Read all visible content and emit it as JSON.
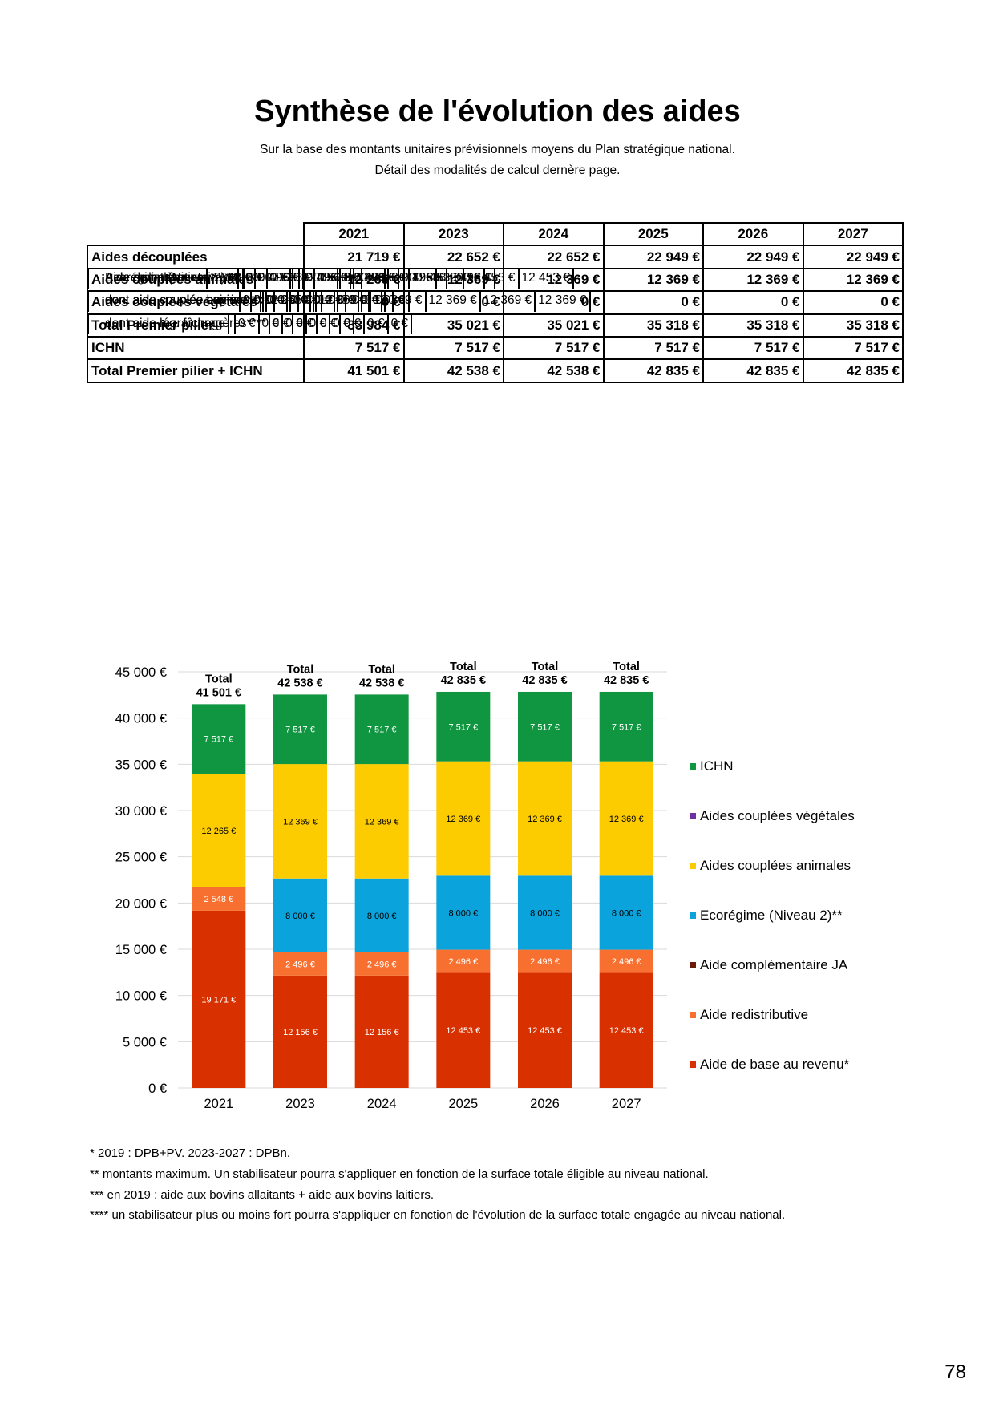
{
  "title": "Synthèse de l'évolution des aides",
  "subtitle_lines": [
    "Sur la base des montants unitaires prévisionnels moyens du Plan stratégique national.",
    "Détail des modalités de calcul dernère page."
  ],
  "table": {
    "years": [
      "2021",
      "2023",
      "2024",
      "2025",
      "2026",
      "2027"
    ],
    "rows": [
      {
        "label": "Aides découplées",
        "type": "group",
        "values": [
          "21 719 €",
          "22 652 €",
          "22 652 €",
          "22 949 €",
          "22 949 €",
          "22 949 €"
        ]
      },
      {
        "label": "Aide de base au revenu*",
        "type": "sub",
        "values": [
          "19 171 €",
          "12 156 €",
          "12 156 €",
          "12 453 €",
          "12 453 €",
          "12 453 €"
        ]
      },
      {
        "label": "Aide redistributive",
        "type": "sub",
        "values": [
          "2 548 €",
          "2 496 €",
          "2 496 €",
          "2 496 €",
          "2 496 €",
          "2 496 €"
        ]
      },
      {
        "label": "Aide complémentaire JA",
        "type": "sub",
        "values": [
          "0 €",
          "0 €",
          "0 €",
          "0 €",
          "0 €",
          "0 €"
        ]
      },
      {
        "label": "Ecorégime (Niveau 2)**",
        "type": "sub",
        "values": [
          "",
          "8 000 €",
          "8 000 €",
          "8 000 €",
          "8 000 €",
          "8 000 €"
        ]
      },
      {
        "label": "Aides couplées animales",
        "type": "group",
        "values": [
          "12 265 €",
          "12 369 €",
          "12 369 €",
          "12 369 €",
          "12 369 €",
          "12 369 €"
        ]
      },
      {
        "label": "dont aide couplée bovine***",
        "type": "sub",
        "values": [
          "12 265 €",
          "12 369 €",
          "12 369 €",
          "12 369 €",
          "12 369 €",
          "12 369 €"
        ]
      },
      {
        "label": "dont aide couplée aux veaux",
        "type": "sub",
        "values": [
          "0 €",
          "0 €",
          "0 €",
          "0 €",
          "0 €",
          "0 €"
        ]
      },
      {
        "label": "dont aide couplée ovine",
        "type": "sub",
        "values": [
          "0 €",
          "0 €",
          "0 €",
          "0 €",
          "0 €",
          "0 €"
        ]
      },
      {
        "label": "dont aide couplée caprine",
        "type": "sub",
        "values": [
          "0 €",
          "0 €",
          "0 €",
          "0 €",
          "0 €",
          "0 €"
        ]
      },
      {
        "label": "Aides couplées végétales",
        "type": "group",
        "values": [
          "0 €",
          "0 €",
          "0 €",
          "0 €",
          "0 €",
          "0 €"
        ]
      },
      {
        "label": "dont aide lég. fourragères****",
        "type": "sub",
        "values": [
          "0 €",
          "0 €",
          "0 €",
          "0 €",
          "0 €",
          "0 €"
        ]
      },
      {
        "label": "dont aide maraîchage",
        "type": "sub",
        "values": [
          "",
          "0 €",
          "0 €",
          "0 €",
          "0 €",
          "0 €"
        ]
      },
      {
        "label": "Total Premier pilier",
        "type": "group",
        "values": [
          "33 984 €",
          "35 021 €",
          "35 021 €",
          "35 318 €",
          "35 318 €",
          "35 318 €"
        ]
      },
      {
        "label": "ICHN",
        "type": "group",
        "values": [
          "7 517 €",
          "7 517 €",
          "7 517 €",
          "7 517 €",
          "7 517 €",
          "7 517 €"
        ]
      },
      {
        "label": "Total Premier pilier + ICHN",
        "type": "group",
        "values": [
          "41 501 €",
          "42 538 €",
          "42 538 €",
          "42 835 €",
          "42 835 €",
          "42 835 €"
        ]
      }
    ]
  },
  "chart_data": {
    "type": "bar",
    "stacked": true,
    "categories": [
      "2021",
      "2023",
      "2024",
      "2025",
      "2026",
      "2027"
    ],
    "ylim": [
      0,
      45000
    ],
    "y_ticks": [
      "0 €",
      "5 000 €",
      "10 000 €",
      "15 000 €",
      "20 000 €",
      "25 000 €",
      "30 000 €",
      "35 000 €",
      "40 000 €",
      "45 000 €"
    ],
    "grid": true,
    "legend_position": "right",
    "series": [
      {
        "name": "Aide de base au revenu*",
        "color": "#d93000",
        "label_color": "#ffffff",
        "values": [
          19171,
          12156,
          12156,
          12453,
          12453,
          12453
        ],
        "labels": [
          "19 171 €",
          "12 156 €",
          "12 156 €",
          "12 453 €",
          "12 453 €",
          "12 453 €"
        ]
      },
      {
        "name": "Aide redistributive",
        "color": "#f87030",
        "label_color": "#ffffff",
        "values": [
          2548,
          2496,
          2496,
          2496,
          2496,
          2496
        ],
        "labels": [
          "2 548 €",
          "2 496 €",
          "2 496 €",
          "2 496 €",
          "2 496 €",
          "2 496 €"
        ]
      },
      {
        "name": "Aide complémentaire JA",
        "color": "#6b1a0a",
        "label_color": "#ffffff",
        "values": [
          0,
          0,
          0,
          0,
          0,
          0
        ],
        "labels": [
          "0 €",
          "0 €",
          "0 €",
          "0 €",
          "0 €",
          "0 €"
        ]
      },
      {
        "name": "Ecorégime (Niveau 2)**",
        "color": "#0aa3dc",
        "label_color": "#000000",
        "values": [
          0,
          8000,
          8000,
          8000,
          8000,
          8000
        ],
        "labels": [
          "",
          "8 000 €",
          "8 000 €",
          "8 000 €",
          "8 000 €",
          "8 000 €"
        ]
      },
      {
        "name": "Aides couplées animales",
        "color": "#fccb00",
        "label_color": "#000000",
        "values": [
          12265,
          12369,
          12369,
          12369,
          12369,
          12369
        ],
        "labels": [
          "12 265 €",
          "12 369 €",
          "12 369 €",
          "12 369 €",
          "12 369 €",
          "12 369 €"
        ]
      },
      {
        "name": "Aides couplées végétales",
        "color": "#7030a0",
        "label_color": "#ffffff",
        "values": [
          0,
          0,
          0,
          0,
          0,
          0
        ],
        "labels": [
          "0 €",
          "0 €",
          "0 €",
          "0 €",
          "0 €",
          "0 €"
        ]
      },
      {
        "name": "ICHN",
        "color": "#109540",
        "label_color": "#ffffff",
        "values": [
          7517,
          7517,
          7517,
          7517,
          7517,
          7517
        ],
        "labels": [
          "7 517 €",
          "7 517 €",
          "7 517 €",
          "7 517 €",
          "7 517 €",
          "7 517 €"
        ]
      }
    ],
    "total_prefix": "Total",
    "totals": [
      "41 501 €",
      "42 538 €",
      "42 538 €",
      "42 835 €",
      "42 835 €",
      "42 835 €"
    ],
    "total_values": [
      41501,
      42538,
      42538,
      42835,
      42835,
      42835
    ],
    "legend_order": [
      "ICHN",
      "Aides couplées végétales",
      "Aides couplées animales",
      "Ecorégime (Niveau 2)**",
      "Aide complémentaire JA",
      "Aide redistributive",
      "Aide de base au revenu*"
    ]
  },
  "footnotes": [
    "* 2019 : DPB+PV. 2023-2027 : DPBn.",
    "** montants maximum. Un stabilisateur pourra s'appliquer en fonction de la surface totale éligible au niveau national.",
    "*** en 2019 : aide aux bovins allaitants + aide aux bovins laitiers.",
    "**** un stabilisateur plus ou moins fort pourra s'appliquer en fonction de l'évolution de la surface totale engagée au niveau national."
  ],
  "page_number": "78"
}
